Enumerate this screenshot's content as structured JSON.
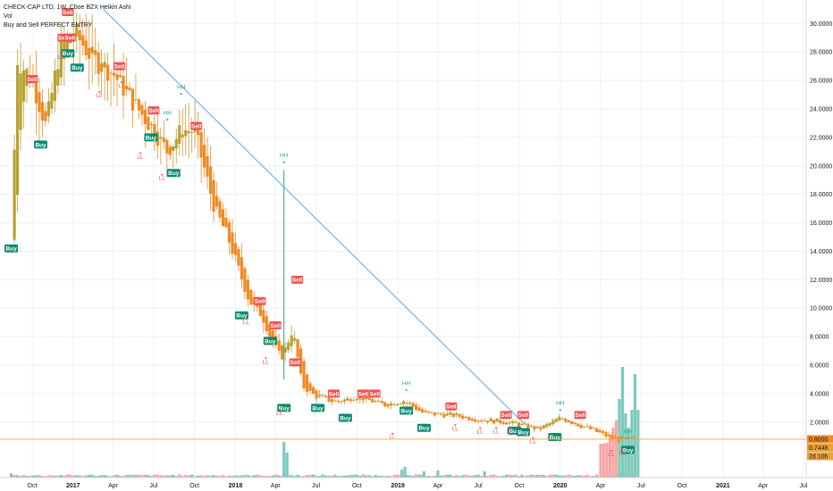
{
  "legend": {
    "title": "CHECK-CAP LTD, 1W, Cboe BZX Heikin Ashi",
    "volume": "Vol",
    "indicator": "Buy and Sell PERFECT ENTRY"
  },
  "colors": {
    "bull": "#b8a234",
    "bear": "#f08a24",
    "buy": "#0b8a6f",
    "sell": "#ef5350",
    "hh": "#26a69a",
    "ll": "#ef5350",
    "trendline": "#5ba8e8",
    "price_line": "#f5a623",
    "vol_up": "#7fc9bd",
    "vol_down": "#f4a7a5",
    "grid": "#eef0f3"
  },
  "price_badges": [
    {
      "label": "0.8000",
      "value": 0.8,
      "color": "#f08a24"
    },
    {
      "label": "0.7448",
      "value": 0.7448,
      "color": "#e8a23a"
    },
    {
      "label": "2d 10h",
      "value": 0.6,
      "color": "#e8a23a"
    }
  ],
  "chart_data": {
    "type": "candlestick",
    "title": "CHECK-CAP LTD, 1W, Cboe BZX Heikin Ashi",
    "xlabel": "",
    "ylabel": "",
    "ylim": [
      0,
      31
    ],
    "y_ticks": [
      "2.0000",
      "4.0000",
      "6.0000",
      "8.0000",
      "10.0000",
      "12.0000",
      "14.0000",
      "16.0000",
      "18.0000",
      "20.0000",
      "22.0000",
      "24.0000",
      "26.0000",
      "28.0000",
      "30.0000"
    ],
    "x_ticks": [
      "Oct",
      "2017",
      "Apr",
      "Jul",
      "Oct",
      "2018",
      "Apr",
      "Jul",
      "Oct",
      "2019",
      "Apr",
      "Jul",
      "Oct",
      "2020",
      "Apr",
      "Jul",
      "Oct",
      "2021",
      "Apr",
      "Jul"
    ],
    "price_path": [
      {
        "date": "2016-08-15",
        "price": 14.8
      },
      {
        "date": "2016-08-29",
        "price": 27.5
      },
      {
        "date": "2016-10-01",
        "price": 26.0
      },
      {
        "date": "2016-11-01",
        "price": 22.8
      },
      {
        "date": "2016-12-01",
        "price": 28.0
      },
      {
        "date": "2017-01-01",
        "price": 29.5
      },
      {
        "date": "2017-02-15",
        "price": 27.5
      },
      {
        "date": "2017-04-01",
        "price": 26.5
      },
      {
        "date": "2017-05-15",
        "price": 24.5
      },
      {
        "date": "2017-07-01",
        "price": 22.5
      },
      {
        "date": "2017-08-01",
        "price": 21.0
      },
      {
        "date": "2017-09-01",
        "price": 22.5
      },
      {
        "date": "2017-10-01",
        "price": 22.5
      },
      {
        "date": "2017-11-15",
        "price": 17.0
      },
      {
        "date": "2017-12-15",
        "price": 15.0
      },
      {
        "date": "2018-02-01",
        "price": 10.5
      },
      {
        "date": "2018-03-01",
        "price": 9.5
      },
      {
        "date": "2018-03-20",
        "price": 8.0
      },
      {
        "date": "2018-04-15",
        "price": 6.5
      },
      {
        "date": "2018-05-10",
        "price": 8.5
      },
      {
        "date": "2018-06-01",
        "price": 4.5
      },
      {
        "date": "2018-07-01",
        "price": 3.8
      },
      {
        "date": "2018-08-15",
        "price": 3.4
      },
      {
        "date": "2018-10-01",
        "price": 3.8
      },
      {
        "date": "2018-12-01",
        "price": 3.2
      },
      {
        "date": "2019-01-15",
        "price": 3.5
      },
      {
        "date": "2019-03-01",
        "price": 2.6
      },
      {
        "date": "2019-05-01",
        "price": 2.5
      },
      {
        "date": "2019-07-01",
        "price": 2.2
      },
      {
        "date": "2019-09-01",
        "price": 2.0
      },
      {
        "date": "2019-11-15",
        "price": 1.5
      },
      {
        "date": "2020-01-01",
        "price": 2.3
      },
      {
        "date": "2020-03-01",
        "price": 1.6
      },
      {
        "date": "2020-05-01",
        "price": 0.8
      },
      {
        "date": "2020-06-20",
        "price": 0.8
      }
    ],
    "trendline": [
      {
        "date": "2017-03-10",
        "price": 31.0
      },
      {
        "date": "2019-10-15",
        "price": 1.8
      }
    ],
    "signals": [
      {
        "label": "Buy",
        "date": "2016-08-15",
        "price": 14.2
      },
      {
        "label": "Sell",
        "date": "2016-12-20",
        "price": 30.8
      },
      {
        "label": "Sell",
        "date": "2016-12-10",
        "price": 29.0
      },
      {
        "label": "Sell",
        "date": "2016-12-25",
        "price": 29.0
      },
      {
        "label": "Buy",
        "date": "2016-12-20",
        "price": 27.9
      },
      {
        "label": "Buy",
        "date": "2017-01-10",
        "price": 26.9
      },
      {
        "label": "Sell",
        "date": "2016-10-01",
        "price": 26.1
      },
      {
        "label": "Buy",
        "date": "2016-10-20",
        "price": 21.5
      },
      {
        "label": "Sell",
        "date": "2017-04-15",
        "price": 27.0
      },
      {
        "label": "Sell",
        "date": "2017-07-01",
        "price": 23.9
      },
      {
        "label": "Buy",
        "date": "2017-06-25",
        "price": 22.0
      },
      {
        "label": "Buy",
        "date": "2017-08-15",
        "price": 19.5
      },
      {
        "label": "Sell",
        "date": "2017-10-05",
        "price": 22.8
      },
      {
        "label": "Sell",
        "date": "2018-05-20",
        "price": 12.0
      },
      {
        "label": "Buy",
        "date": "2018-01-15",
        "price": 9.5
      },
      {
        "label": "Sell",
        "date": "2018-02-25",
        "price": 10.5
      },
      {
        "label": "Buy",
        "date": "2018-03-20",
        "price": 7.7
      },
      {
        "label": "Sell",
        "date": "2018-04-01",
        "price": 8.8
      },
      {
        "label": "Sell",
        "date": "2018-05-15",
        "price": 6.2
      },
      {
        "label": "Buy",
        "date": "2018-04-20",
        "price": 3.0
      },
      {
        "label": "Sell",
        "date": "2018-08-10",
        "price": 4.0
      },
      {
        "label": "Buy",
        "date": "2018-07-05",
        "price": 3.0
      },
      {
        "label": "Buy",
        "date": "2018-09-05",
        "price": 2.3
      },
      {
        "label": "Sell",
        "date": "2018-10-15",
        "price": 4.0
      },
      {
        "label": "Sell",
        "date": "2018-11-10",
        "price": 4.0
      },
      {
        "label": "Buy",
        "date": "2019-01-20",
        "price": 2.8
      },
      {
        "label": "Buy",
        "date": "2019-03-01",
        "price": 1.6
      },
      {
        "label": "Sell",
        "date": "2019-05-01",
        "price": 3.1
      },
      {
        "label": "Sell",
        "date": "2019-09-01",
        "price": 2.5
      },
      {
        "label": "Sell",
        "date": "2019-10-10",
        "price": 2.5
      },
      {
        "label": "Buy",
        "date": "2019-09-20",
        "price": 1.4
      },
      {
        "label": "Buy",
        "date": "2019-10-10",
        "price": 1.3
      },
      {
        "label": "Buy",
        "date": "2019-12-20",
        "price": 0.95
      },
      {
        "label": "Sell",
        "date": "2020-02-15",
        "price": 2.5
      },
      {
        "label": "Buy",
        "date": "2020-06-01",
        "price": 0.05
      }
    ],
    "peaks": [
      {
        "label": "HH",
        "date": "2017-09-01",
        "price": 25.4
      },
      {
        "label": "HH",
        "date": "2017-08-01",
        "price": 23.6
      },
      {
        "label": "LL",
        "date": "2016-12-05",
        "price": 27.5
      },
      {
        "label": "LL",
        "date": "2017-04-20",
        "price": 25.5
      },
      {
        "label": "LL",
        "date": "2017-03-01",
        "price": 24.8
      },
      {
        "label": "LL",
        "date": "2017-06-01",
        "price": 20.5
      },
      {
        "label": "LL",
        "date": "2017-07-20",
        "price": 19.0
      },
      {
        "label": "HH",
        "date": "2018-04-20",
        "price": 20.6
      },
      {
        "label": "LL",
        "date": "2018-01-25",
        "price": 8.9
      },
      {
        "label": "LL",
        "date": "2018-03-10",
        "price": 6.1
      },
      {
        "label": "LL",
        "date": "2018-04-10",
        "price": 2.5
      },
      {
        "label": "HH",
        "date": "2019-01-20",
        "price": 4.6
      },
      {
        "label": "LL",
        "date": "2018-12-20",
        "price": 0.8
      },
      {
        "label": "LL",
        "date": "2019-05-10",
        "price": 1.4
      },
      {
        "label": "LL",
        "date": "2019-07-05",
        "price": 1.2
      },
      {
        "label": "LL",
        "date": "2019-08-10",
        "price": 1.2
      },
      {
        "label": "LL",
        "date": "2019-09-10",
        "price": 1.2
      },
      {
        "label": "LL",
        "date": "2019-11-01",
        "price": 0.5
      },
      {
        "label": "HH",
        "date": "2020-01-01",
        "price": 3.2
      },
      {
        "label": "LL",
        "date": "2020-04-25",
        "price": -0.4
      },
      {
        "label": "LL",
        "date": "2020-05-20",
        "price": -0.3
      },
      {
        "label": "HH",
        "date": "2020-06-01",
        "price": 1.2
      }
    ],
    "volume_spikes": [
      {
        "date": "2016-08-15",
        "ratio": 0.12,
        "dir": "up"
      },
      {
        "date": "2018-04-20",
        "ratio": 1.0,
        "dir": "up"
      },
      {
        "date": "2018-04-27",
        "ratio": 0.7,
        "dir": "up"
      },
      {
        "date": "2019-01-10",
        "ratio": 0.22,
        "dir": "up"
      },
      {
        "date": "2019-01-17",
        "ratio": 0.3,
        "dir": "up"
      },
      {
        "date": "2019-03-01",
        "ratio": 0.18,
        "dir": "up"
      },
      {
        "date": "2019-04-01",
        "ratio": 0.2,
        "dir": "up"
      },
      {
        "date": "2019-07-15",
        "ratio": 0.18,
        "dir": "up"
      },
      {
        "date": "2020-04-01",
        "ratio": 0.95,
        "dir": "down"
      },
      {
        "date": "2020-04-08",
        "ratio": 0.95,
        "dir": "down"
      },
      {
        "date": "2020-04-15",
        "ratio": 0.98,
        "dir": "down"
      },
      {
        "date": "2020-04-22",
        "ratio": 1.2,
        "dir": "down"
      },
      {
        "date": "2020-04-29",
        "ratio": 1.4,
        "dir": "down"
      },
      {
        "date": "2020-05-06",
        "ratio": 1.6,
        "dir": "down"
      },
      {
        "date": "2020-05-13",
        "ratio": 2.2,
        "dir": "up"
      },
      {
        "date": "2020-05-20",
        "ratio": 3.1,
        "dir": "up"
      },
      {
        "date": "2020-05-27",
        "ratio": 1.8,
        "dir": "up"
      },
      {
        "date": "2020-06-03",
        "ratio": 1.4,
        "dir": "up"
      },
      {
        "date": "2020-06-10",
        "ratio": 1.9,
        "dir": "up"
      },
      {
        "date": "2020-06-17",
        "ratio": 2.9,
        "dir": "up"
      },
      {
        "date": "2020-06-24",
        "ratio": 1.9,
        "dir": "up"
      }
    ],
    "current_price": 0.8,
    "grid": true,
    "legend_position": "top-left"
  }
}
